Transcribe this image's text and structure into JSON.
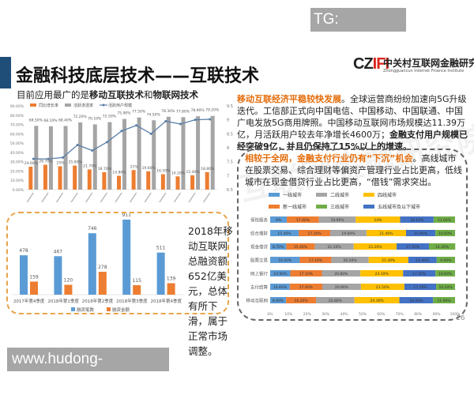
{
  "watermark_top": "TG: MYYJJPP",
  "watermark_bottom": "www.hudong-china.com",
  "title": "金融科技底层技术——互联技术",
  "subtitle": {
    "prefix": "目前应用最广的是",
    "bold1": "移动互联技术",
    "mid": "和",
    "bold2": "物联网技术"
  },
  "logo": {
    "mark": "CZIFI",
    "name_cn": "中关村互联网金融研究院",
    "name_en": "Zhongguancun Internet Finance Institute"
  },
  "paragraph1": {
    "highlight": "移动互联经济平稳较快发展",
    "body": "。全球运营商纷纷加速向5G升级迭代。工信部正式向中国电信、中国移动、中国联通、中国广电发放5G商用牌照。中国移动互联网市场规模达11.39万亿，月活跃用户较去年净增长4600万；",
    "bold": "金融支付用户规模已经突破9亿，并且仍保持了15%以上的增速。"
  },
  "paragraph2": {
    "highlight": "相较于全网，金融支付行业仍有“下沉”机会",
    "body": "。高线城市在股票交易、综合理财等偏资产管理行业占比更高，低线城市在现金借贷行业占比更高，“借钱”需求突出。"
  },
  "side_text": "2018年移动互联网总融资额652亿美元，总体有所下滑，属于正常市场调整。",
  "page_number": "16",
  "colors": {
    "orange": "#ed7d31",
    "gray": "#a5a5a5",
    "blue": "#5b9bd5",
    "line": "#5a7fa8",
    "yellow": "#ffc000",
    "green": "#70ad47",
    "darkblue": "#4472c4",
    "title_bar": "#1f4e79"
  },
  "chart_data": [
    {
      "type": "bar+line",
      "legend": [
        "同比增长率",
        "活跃渗透率",
        "活跃用户规模"
      ],
      "legend_placement": "top-left",
      "left_axis": {
        "ylim": [
          0,
          90
        ],
        "ticks": [
          "0.00%",
          "10.00%",
          "20.00%",
          "30.00%",
          "40.00%",
          "50.00%",
          "60.00%",
          "70.00%",
          "80.00%",
          "90.00%"
        ]
      },
      "right_axis": {
        "ylim": [
          6.5,
          9.5
        ],
        "ticks": [
          "6.5",
          "7",
          "7.5",
          "8",
          "8.5",
          "9",
          "9.5"
        ]
      },
      "series": [
        {
          "name": "同比增长率",
          "kind": "bar",
          "color": "#ed7d31",
          "values": [
            24.6,
            26.7,
            25,
            25.8,
            21.7,
            18.7,
            14.8,
            21,
            19.6,
            16.5,
            14.2,
            15.4,
            18.8
          ],
          "labels": [
            "24.60%",
            "26.70%",
            "25%",
            "25.80%",
            "21.70%",
            "18.70%",
            "14.80%",
            "21%",
            "19.60%",
            "16.50%",
            "14.20%",
            "15.40%",
            "18.80%"
          ]
        },
        {
          "name": "活跃渗透率",
          "kind": "bar",
          "color": "#a5a5a5",
          "values": [
            68.5,
            68.1,
            68.4,
            72.2,
            70.1,
            72.5,
            75.9,
            77.5,
            74.5,
            78.3,
            77.8,
            78.9,
            79.2
          ],
          "labels": [
            "68.50%",
            "68.10%",
            "68.40%",
            "72.20%",
            "70.10%",
            "72.50%",
            "75.90%",
            "77.50%",
            "74.50%",
            "78.30%",
            "77.80%",
            "78.90%",
            "79.20%"
          ]
        },
        {
          "name": "活跃用户规模",
          "kind": "line",
          "axis": "right",
          "color": "#5a7fa8",
          "values": [
            7.6,
            7.6,
            7.65,
            8.1,
            7.9,
            8.2,
            8.6,
            8.8,
            8.5,
            8.95,
            8.85,
            9.0,
            9.02
          ]
        }
      ]
    },
    {
      "type": "bar",
      "categories": [
        "2017年第4季度",
        "2018年第1季度",
        "2018年第2季度",
        "2018年第3季度",
        "2018年第4季度"
      ],
      "series": [
        {
          "name": "融资笔数",
          "color": "#5b9bd5",
          "values": [
            478,
            467,
            746,
            911,
            511
          ]
        },
        {
          "name": "融资金额",
          "color": "#ed7d31",
          "values": [
            159,
            120,
            278,
            115,
            139
          ]
        }
      ],
      "legend_placement": "bottom"
    },
    {
      "type": "stacked-bar-horizontal",
      "categories": [
        "保险服务",
        "综合理财",
        "现金借贷",
        "股票交易",
        "网上银行",
        "支付结算",
        "移动互联网"
      ],
      "xlim": [
        0,
        100
      ],
      "x_ticks": [
        "0%",
        "10%",
        "20%",
        "30%",
        "40%",
        "50%",
        "60%",
        "70%",
        "80%",
        "90%",
        "100%"
      ],
      "legend": [
        {
          "name": "一线城市",
          "color": "#5b9bd5"
        },
        {
          "name": "二线城市",
          "color": "#a5a5a5"
        },
        {
          "name": "四线城市",
          "color": "#ffc000"
        },
        {
          "name": "新一线城市",
          "color": "#ed7d31"
        },
        {
          "name": "三线城市",
          "color": "#70ad47"
        },
        {
          "name": "五线城市及以下城市",
          "color": "#4472c4"
        }
      ],
      "legend_placement": "top",
      "segments_colors": [
        "#5b9bd5",
        "#ed7d31",
        "#a5a5a5",
        "#ffc000",
        "#4472c4",
        "#70ad47"
      ],
      "rows": [
        {
          "values": [
            9,
            17.4,
            19.9,
            24,
            18.1,
            11.6
          ],
          "labels": [
            "9%",
            "17.40%",
            "19.90%",
            "24%",
            "18.10%",
            "11.60%"
          ]
        },
        {
          "values": [
            15.4,
            17.1,
            19.6,
            21.4,
            15.9,
            10.6
          ],
          "labels": [
            "15.40%",
            "17.10%",
            "19.60%",
            "21.40%",
            "15.90%",
            "10.60%"
          ]
        },
        {
          "values": [
            8.7,
            15.4,
            21.1,
            23.2,
            17.5,
            14.2
          ],
          "labels": [
            "8.70%",
            "15.40%",
            "21.10%",
            "23.20%",
            "17.50%",
            "14.20%"
          ]
        },
        {
          "values": [
            16,
            17.1,
            20.2,
            21.4,
            15.4,
            9.9
          ],
          "labels": [
            "16.00%",
            "17.10%",
            "20.20%",
            "21.40%",
            "15.40%",
            "9.90%"
          ]
        },
        {
          "values": [
            10.9,
            17.1,
            20.8,
            23.1,
            17.5,
            10.6
          ],
          "labels": [
            "10.90%",
            "17.10%",
            "20.80%",
            "23.10%",
            "17.50%",
            "10.60%"
          ]
        },
        {
          "values": [
            10.6,
            17.6,
            20.9,
            23.5,
            17.2,
            10.2
          ],
          "labels": [
            "10.60%",
            "17.60%",
            "20.90%",
            "23.50%",
            "17.20%",
            "10.20%"
          ]
        },
        {
          "values": [
            8.6,
            16.2,
            20.8,
            24.3,
            18.2,
            11.9
          ],
          "labels": [
            "8.60%",
            "16.20%",
            "20.80%",
            "24.30%",
            "18.20%",
            "11.90%"
          ]
        }
      ]
    }
  ]
}
